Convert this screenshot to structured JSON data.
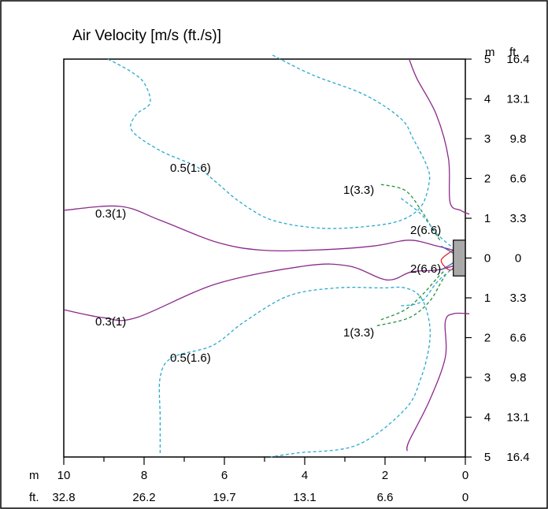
{
  "chart_data": {
    "type": "contour",
    "title": "Air Velocity [m/s (ft./s)]",
    "x_axis": {
      "unit_labels": [
        "m",
        "ft."
      ],
      "m_ticks": [
        "10",
        "8",
        "6",
        "4",
        "2",
        "0"
      ],
      "ft_ticks": [
        "32.8",
        "26.2",
        "19.7",
        "13.1",
        "6.6",
        "0"
      ],
      "range": [
        10,
        0
      ]
    },
    "y_axis": {
      "unit_labels": [
        "m",
        "ft."
      ],
      "m_ticks": [
        "5",
        "4",
        "3",
        "2",
        "1",
        "0",
        "1",
        "2",
        "3",
        "4",
        "5"
      ],
      "ft_ticks": [
        "16.4",
        "13.1",
        "9.8",
        "6.6",
        "3.3",
        "0",
        "3.3",
        "6.6",
        "9.8",
        "13.1",
        "16.4"
      ],
      "range": [
        -5,
        5
      ]
    },
    "colors": {
      "level_0.3": "#8b2a8b",
      "level_0.5": "#27aacf",
      "level_1": "#23913a",
      "level_2": "#e8232a",
      "level_2_inner": "#4b63b3",
      "outlet": "#a9a9a9"
    },
    "contour_labels": [
      {
        "id": "lbl-0.5-top",
        "text": "0.5(1.6)"
      },
      {
        "id": "lbl-0.3-top",
        "text": "0.3(1)"
      },
      {
        "id": "lbl-1-top",
        "text": "1(3.3)"
      },
      {
        "id": "lbl-2-top",
        "text": "2(6.6)"
      },
      {
        "id": "lbl-2-bot",
        "text": "2(6.6)"
      },
      {
        "id": "lbl-0.3-bot",
        "text": "0.3(1)"
      },
      {
        "id": "lbl-1-bot",
        "text": "1(3.3)"
      },
      {
        "id": "lbl-0.5-bot",
        "text": "0.5(1.6)"
      }
    ],
    "contours": [
      {
        "level": "0.3(1)",
        "color_key": "level_0.3",
        "dash": false,
        "points": [
          [
            1.4,
            5
          ],
          [
            1.2,
            4.5
          ],
          [
            0.72,
            3.6
          ],
          [
            0.42,
            2.5
          ],
          [
            0.38,
            1.4
          ],
          [
            0.12,
            1.2
          ],
          [
            -0.1,
            1.1
          ]
        ]
      },
      {
        "level": "0.3(1)",
        "color_key": "level_0.3",
        "dash": false,
        "points": [
          [
            10,
            1.2
          ],
          [
            8.6,
            1.3
          ],
          [
            7.6,
            0.95
          ],
          [
            6.2,
            0.4
          ],
          [
            5.1,
            0.2
          ],
          [
            3.8,
            0.2
          ],
          [
            2.3,
            0.3
          ],
          [
            1.4,
            0.45
          ],
          [
            0.7,
            0.3
          ],
          [
            0.3,
            0.2
          ]
        ]
      },
      {
        "level": "0.3(1)",
        "color_key": "level_0.3",
        "dash": false,
        "points": [
          [
            10,
            -1.3
          ],
          [
            9.0,
            -1.5
          ],
          [
            8.2,
            -1.5
          ],
          [
            6.2,
            -0.65
          ],
          [
            4.0,
            -0.2
          ],
          [
            2.9,
            -0.2
          ],
          [
            1.95,
            -0.55
          ],
          [
            1.35,
            -0.35
          ],
          [
            0.7,
            -0.3
          ],
          [
            0.3,
            -0.2
          ]
        ]
      },
      {
        "level": "0.3(1)",
        "color_key": "level_0.3",
        "dash": false,
        "points": [
          [
            -0.1,
            -1.4
          ],
          [
            0.3,
            -1.4
          ],
          [
            0.5,
            -1.6
          ],
          [
            0.5,
            -2.5
          ],
          [
            0.9,
            -3.6
          ],
          [
            1.4,
            -4.6
          ],
          [
            1.45,
            -4.85
          ]
        ]
      },
      {
        "level": "0.5(1.6)",
        "color_key": "level_0.5",
        "dash": true,
        "points": [
          [
            8.9,
            5
          ],
          [
            8.35,
            4.7
          ],
          [
            8.0,
            4.4
          ],
          [
            7.85,
            3.9
          ],
          [
            8.2,
            3.6
          ],
          [
            8.3,
            3.2
          ],
          [
            7.6,
            2.7
          ],
          [
            6.7,
            2.3
          ],
          [
            6.2,
            1.9
          ],
          [
            5.6,
            1.4
          ],
          [
            4.8,
            0.95
          ],
          [
            3.6,
            0.75
          ],
          [
            2.4,
            0.8
          ],
          [
            1.6,
            0.95
          ],
          [
            1.1,
            1.3
          ],
          [
            0.9,
            1.9
          ],
          [
            0.95,
            2.3
          ],
          [
            1.3,
            3.0
          ],
          [
            1.6,
            3.5
          ],
          [
            2.5,
            4.1
          ],
          [
            3.8,
            4.6
          ],
          [
            4.8,
            5.1
          ]
        ]
      },
      {
        "level": "0.5(1.6)",
        "color_key": "level_0.5",
        "dash": true,
        "points": [
          [
            7.6,
            -4.9
          ],
          [
            7.6,
            -4.0
          ],
          [
            7.6,
            -3.0
          ],
          [
            7.3,
            -2.5
          ],
          [
            6.3,
            -2.2
          ],
          [
            5.5,
            -1.6
          ],
          [
            4.4,
            -0.95
          ],
          [
            3.2,
            -0.75
          ],
          [
            2.1,
            -0.75
          ],
          [
            1.5,
            -0.75
          ],
          [
            1.1,
            -1.0
          ],
          [
            0.9,
            -1.6
          ],
          [
            0.9,
            -2.2
          ],
          [
            1.1,
            -3.0
          ],
          [
            1.5,
            -3.8
          ],
          [
            2.7,
            -4.7
          ],
          [
            4.2,
            -4.9
          ],
          [
            4.85,
            -5.0
          ]
        ]
      },
      {
        "level": "1(3.3)",
        "color_key": "level_1",
        "dash": true,
        "points": [
          [
            2.1,
            1.85
          ],
          [
            1.5,
            1.7
          ],
          [
            1.1,
            1.2
          ],
          [
            0.8,
            0.7
          ],
          [
            0.6,
            0.4
          ]
        ]
      },
      {
        "level": "1(3.3)",
        "color_key": "level_1",
        "dash": true,
        "points": [
          [
            2.1,
            -1.55
          ],
          [
            1.5,
            -1.3
          ],
          [
            1.05,
            -0.9
          ],
          [
            0.7,
            -0.5
          ],
          [
            0.5,
            -0.3
          ]
        ]
      },
      {
        "level": "1(3.3)",
        "color_key": "level_1",
        "dash": true,
        "points": [
          [
            2.2,
            -1.7
          ],
          [
            1.4,
            -1.5
          ],
          [
            0.9,
            -1.1
          ],
          [
            0.6,
            -0.6
          ],
          [
            0.45,
            -0.35
          ]
        ]
      },
      {
        "level": "0.5(1.6)",
        "color_key": "level_0.5",
        "dash": true,
        "points": [
          [
            1.6,
            1.5
          ],
          [
            1.1,
            1.1
          ],
          [
            0.7,
            0.6
          ],
          [
            0.3,
            0.25
          ]
        ]
      },
      {
        "level": "0.5(1.6)",
        "color_key": "level_0.5",
        "dash": true,
        "points": [
          [
            1.6,
            -1.2
          ],
          [
            1.1,
            -1.1
          ],
          [
            0.7,
            -0.6
          ],
          [
            0.3,
            -0.25
          ]
        ]
      },
      {
        "level": "2(6.6)",
        "color_key": "level_2",
        "dash": false,
        "points": [
          [
            0.3,
            0.2
          ],
          [
            0.6,
            -0.05
          ],
          [
            0.4,
            -0.3
          ],
          [
            0.2,
            -0.2
          ]
        ]
      },
      {
        "level": "2(6.6)",
        "color_key": "level_2_inner",
        "dash": false,
        "points": [
          [
            0.6,
            0.3
          ],
          [
            0.2,
            0.0
          ],
          [
            0.6,
            -0.3
          ]
        ]
      }
    ],
    "outlet": {
      "x_range": [
        0.3,
        0
      ],
      "y_range": [
        -0.45,
        0.45
      ]
    }
  }
}
